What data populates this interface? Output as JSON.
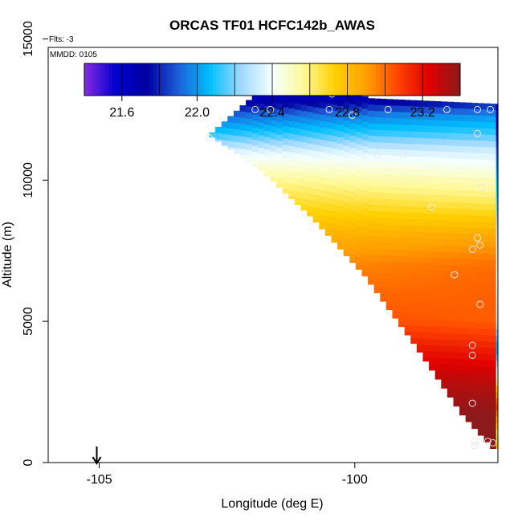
{
  "chart_data": {
    "type": "heatmap",
    "title": "ORCAS TF01 HCFC142b_AWAS",
    "flts_label": "Flts: -3",
    "mmdd_label": "MMDD: 0105",
    "xlabel": "Longitude (deg E)",
    "ylabel": "Altitude (m)",
    "xlim": [
      -106.0,
      -97.2
    ],
    "ylim": [
      0,
      14700
    ],
    "x_ticks": [
      -105,
      -100
    ],
    "x_tick_labels": [
      "-105",
      "-100"
    ],
    "y_ticks": [
      0,
      5000,
      10000,
      15000
    ],
    "y_tick_labels": [
      "0",
      "5000",
      "10000",
      "15000"
    ],
    "colorbar": {
      "min": 21.4,
      "max": 23.4,
      "ticks": [
        21.6,
        22.0,
        22.4,
        22.8,
        23.2
      ],
      "tick_labels": [
        "21.6",
        "22.0",
        "22.4",
        "22.8",
        "23.2"
      ],
      "colors": [
        "#8a2be2",
        "#0000cd",
        "#0000a0",
        "#1e5ed8",
        "#00bfff",
        "#9fd8ff",
        "#f5ffff",
        "#fffa9a",
        "#ffd000",
        "#ffa000",
        "#ff4500",
        "#e00000",
        "#8b1a1a"
      ]
    },
    "arrow_longitude": -105.05,
    "grid": false,
    "field": {
      "apex": {
        "lon": -102.85,
        "alt": 11600
      },
      "upper_edge": [
        [
          -102.85,
          11600
        ],
        [
          -102.1,
          12800
        ],
        [
          -101.4,
          13700
        ],
        [
          -100.3,
          13300
        ],
        [
          -99.7,
          12900
        ],
        [
          -97.2,
          12700
        ]
      ],
      "lower_edge": [
        [
          -102.85,
          11600
        ],
        [
          -101.8,
          10300
        ],
        [
          -100.8,
          8600
        ],
        [
          -99.8,
          6600
        ],
        [
          -98.8,
          4100
        ],
        [
          -97.9,
          1700
        ],
        [
          -97.3,
          500
        ],
        [
          -97.2,
          500
        ]
      ],
      "column_lon": [
        -97.7,
        -97.4,
        -97.25
      ],
      "levels": [
        {
          "alt": 13500,
          "value": 21.5
        },
        {
          "alt": 12800,
          "value": 21.7
        },
        {
          "alt": 12300,
          "value": 21.95
        },
        {
          "alt": 11700,
          "value": 22.1
        },
        {
          "alt": 11000,
          "value": 22.35
        },
        {
          "alt": 10000,
          "value": 22.55
        },
        {
          "alt": 9000,
          "value": 22.7
        },
        {
          "alt": 8000,
          "value": 22.85
        },
        {
          "alt": 7000,
          "value": 22.95
        },
        {
          "alt": 6000,
          "value": 23.0
        },
        {
          "alt": 5000,
          "value": 23.05
        },
        {
          "alt": 4000,
          "value": 23.2
        },
        {
          "alt": 3000,
          "value": 23.3
        },
        {
          "alt": 2000,
          "value": 23.35
        },
        {
          "alt": 800,
          "value": 23.4
        }
      ],
      "column_values": [
        {
          "alt": 12600,
          "value": 21.6
        },
        {
          "alt": 11000,
          "value": 21.9
        },
        {
          "alt": 9500,
          "value": 22.1
        },
        {
          "alt": 8000,
          "value": 22.3
        },
        {
          "alt": 6500,
          "value": 22.4
        },
        {
          "alt": 5000,
          "value": 22.3
        },
        {
          "alt": 4000,
          "value": 22.0
        },
        {
          "alt": 3000,
          "value": 22.5
        },
        {
          "alt": 2000,
          "value": 23.1
        },
        {
          "alt": 1000,
          "value": 22.6
        },
        {
          "alt": 500,
          "value": 22.8
        }
      ]
    },
    "observations": [
      {
        "lon": -101.4,
        "alt": 13700
      },
      {
        "lon": -100.9,
        "alt": 13550
      },
      {
        "lon": -100.45,
        "alt": 13050
      },
      {
        "lon": -101.95,
        "alt": 12500
      },
      {
        "lon": -101.65,
        "alt": 12500
      },
      {
        "lon": -100.5,
        "alt": 12500
      },
      {
        "lon": -99.35,
        "alt": 12500
      },
      {
        "lon": -98.2,
        "alt": 12500
      },
      {
        "lon": -97.6,
        "alt": 12500
      },
      {
        "lon": -97.35,
        "alt": 12500
      },
      {
        "lon": -100.05,
        "alt": 12300
      },
      {
        "lon": -97.6,
        "alt": 11650
      },
      {
        "lon": -102.85,
        "alt": 11500
      },
      {
        "lon": -99.55,
        "alt": 10900
      },
      {
        "lon": -99.05,
        "alt": 10900
      },
      {
        "lon": -97.5,
        "alt": 9750
      },
      {
        "lon": -98.5,
        "alt": 9050
      },
      {
        "lon": -97.6,
        "alt": 7950
      },
      {
        "lon": -97.55,
        "alt": 7700
      },
      {
        "lon": -97.7,
        "alt": 7550
      },
      {
        "lon": -98.05,
        "alt": 6650
      },
      {
        "lon": -97.55,
        "alt": 5600
      },
      {
        "lon": -97.7,
        "alt": 4150
      },
      {
        "lon": -97.7,
        "alt": 3800
      },
      {
        "lon": -97.7,
        "alt": 2100
      },
      {
        "lon": -97.65,
        "alt": 750
      },
      {
        "lon": -97.4,
        "alt": 750
      },
      {
        "lon": -97.3,
        "alt": 700
      },
      {
        "lon": -97.65,
        "alt": 600
      }
    ]
  }
}
